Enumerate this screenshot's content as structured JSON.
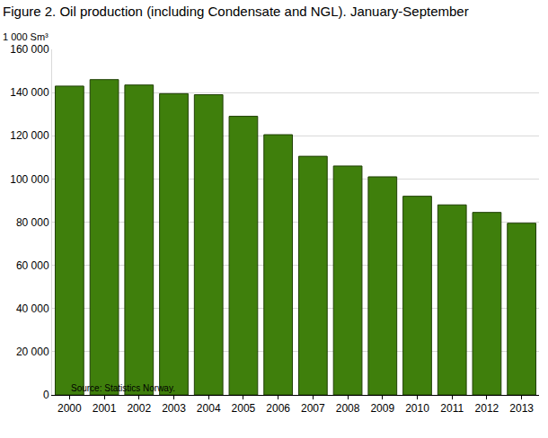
{
  "chart_data": {
    "type": "bar",
    "title": "Figure 2. Oil production (including Condensate and NGL). January-September",
    "ylabel": "1 000 Sm³",
    "source": "Source: Statistics Norway.",
    "categories": [
      "2000",
      "2001",
      "2002",
      "2003",
      "2004",
      "2005",
      "2006",
      "2007",
      "2008",
      "2009",
      "2010",
      "2011",
      "2012",
      "2013"
    ],
    "values": [
      143000,
      146000,
      143500,
      139500,
      139000,
      129000,
      120500,
      110500,
      106000,
      101000,
      92000,
      88000,
      84500,
      79500
    ],
    "color": "#3f7f0c",
    "ylim": [
      0,
      160000
    ],
    "yticks": [
      0,
      {
        "value": 20000,
        "label": "20 000"
      },
      {
        "value": 40000,
        "label": "40 000"
      },
      {
        "value": 60000,
        "label": "60 000"
      },
      {
        "value": 80000,
        "label": "80 000"
      },
      {
        "value": 100000,
        "label": "100 000"
      },
      {
        "value": 120000,
        "label": "120 000"
      },
      {
        "value": 140000,
        "label": "140 000"
      },
      {
        "value": 160000,
        "label": "160 000"
      }
    ],
    "grid": true
  }
}
